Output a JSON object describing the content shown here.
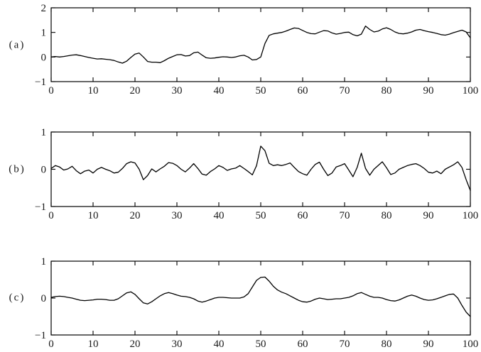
{
  "figure": {
    "background": "#ffffff",
    "axis_color": "#000000",
    "line_color": "#000000",
    "tick_label_color": "#1a1a1a"
  },
  "chart_data": [
    {
      "type": "line",
      "panel_label": "(a)",
      "title": "",
      "xlabel": "",
      "ylabel": "",
      "xlim": [
        0,
        100
      ],
      "ylim": [
        -1,
        2
      ],
      "xticks": [
        0,
        10,
        20,
        30,
        40,
        50,
        60,
        70,
        80,
        90,
        100
      ],
      "yticks": [
        -1,
        0,
        1,
        2
      ],
      "grid": false,
      "x_start": 0,
      "x_end": 100,
      "values": [
        0.0,
        0.02,
        0.0,
        0.02,
        0.05,
        0.08,
        0.09,
        0.06,
        0.02,
        -0.02,
        -0.05,
        -0.08,
        -0.07,
        -0.09,
        -0.11,
        -0.14,
        -0.2,
        -0.25,
        -0.17,
        -0.02,
        0.12,
        0.16,
        0.0,
        -0.18,
        -0.21,
        -0.21,
        -0.23,
        -0.15,
        -0.05,
        0.02,
        0.09,
        0.1,
        0.04,
        0.06,
        0.17,
        0.2,
        0.08,
        -0.03,
        -0.05,
        -0.04,
        -0.01,
        0.01,
        0.0,
        -0.02,
        0.0,
        0.05,
        0.07,
        0.0,
        -0.12,
        -0.1,
        0.0,
        0.55,
        0.88,
        0.94,
        0.97,
        1.0,
        1.05,
        1.12,
        1.18,
        1.16,
        1.08,
        1.0,
        0.95,
        0.94,
        1.01,
        1.07,
        1.06,
        0.98,
        0.93,
        0.96,
        1.0,
        1.01,
        0.91,
        0.86,
        0.93,
        1.26,
        1.12,
        1.02,
        1.05,
        1.14,
        1.19,
        1.12,
        1.02,
        0.96,
        0.94,
        0.97,
        1.02,
        1.09,
        1.12,
        1.07,
        1.03,
        1.0,
        0.96,
        0.91,
        0.89,
        0.93,
        0.99,
        1.04,
        1.09,
        1.02,
        0.78
      ]
    },
    {
      "type": "line",
      "panel_label": "(b)",
      "title": "",
      "xlabel": "",
      "ylabel": "",
      "xlim": [
        0,
        100
      ],
      "ylim": [
        -1,
        1
      ],
      "xticks": [
        0,
        10,
        20,
        30,
        40,
        50,
        60,
        70,
        80,
        90,
        100
      ],
      "yticks": [
        -1,
        0,
        1
      ],
      "grid": false,
      "x_start": 0,
      "x_end": 100,
      "values": [
        0.02,
        0.1,
        0.06,
        -0.02,
        0.01,
        0.08,
        -0.04,
        -0.12,
        -0.05,
        -0.02,
        -0.1,
        0.0,
        0.05,
        0.0,
        -0.04,
        -0.1,
        -0.08,
        0.02,
        0.15,
        0.2,
        0.17,
        0.0,
        -0.28,
        -0.17,
        0.01,
        -0.07,
        0.01,
        0.08,
        0.18,
        0.16,
        0.1,
        0.0,
        -0.07,
        0.03,
        0.15,
        0.02,
        -0.13,
        -0.16,
        -0.06,
        0.01,
        0.1,
        0.05,
        -0.03,
        0.01,
        0.03,
        0.1,
        0.02,
        -0.06,
        -0.15,
        0.1,
        0.62,
        0.5,
        0.16,
        0.1,
        0.12,
        0.1,
        0.13,
        0.17,
        0.05,
        -0.06,
        -0.12,
        -0.16,
        0.0,
        0.13,
        0.19,
        0.0,
        -0.17,
        -0.1,
        0.06,
        0.1,
        0.15,
        -0.02,
        -0.2,
        0.05,
        0.43,
        0.02,
        -0.16,
        0.0,
        0.1,
        0.2,
        0.04,
        -0.14,
        -0.1,
        0.0,
        0.05,
        0.1,
        0.13,
        0.15,
        0.1,
        0.02,
        -0.08,
        -0.1,
        -0.05,
        -0.12,
        0.0,
        0.06,
        0.12,
        0.2,
        0.05,
        -0.28,
        -0.57
      ]
    },
    {
      "type": "line",
      "panel_label": "(c)",
      "title": "",
      "xlabel": "",
      "ylabel": "",
      "xlim": [
        0,
        100
      ],
      "ylim": [
        -1,
        1
      ],
      "xticks": [
        0,
        10,
        20,
        30,
        40,
        50,
        60,
        70,
        80,
        90,
        100
      ],
      "yticks": [
        -1,
        0,
        1
      ],
      "grid": false,
      "x_start": 0,
      "x_end": 100,
      "values": [
        0.02,
        0.04,
        0.05,
        0.04,
        0.02,
        0.0,
        -0.03,
        -0.06,
        -0.07,
        -0.06,
        -0.05,
        -0.03,
        -0.03,
        -0.04,
        -0.06,
        -0.06,
        -0.02,
        0.06,
        0.14,
        0.17,
        0.1,
        -0.02,
        -0.13,
        -0.16,
        -0.1,
        -0.02,
        0.06,
        0.12,
        0.15,
        0.12,
        0.08,
        0.05,
        0.04,
        0.02,
        -0.02,
        -0.08,
        -0.11,
        -0.08,
        -0.04,
        0.0,
        0.02,
        0.02,
        0.01,
        0.0,
        0.0,
        0.0,
        0.03,
        0.12,
        0.3,
        0.48,
        0.56,
        0.57,
        0.46,
        0.32,
        0.22,
        0.16,
        0.12,
        0.06,
        0.0,
        -0.06,
        -0.1,
        -0.11,
        -0.08,
        -0.03,
        0.0,
        -0.02,
        -0.04,
        -0.03,
        -0.02,
        -0.02,
        0.0,
        0.02,
        0.06,
        0.12,
        0.15,
        0.1,
        0.05,
        0.02,
        0.02,
        0.0,
        -0.04,
        -0.07,
        -0.08,
        -0.05,
        0.0,
        0.05,
        0.08,
        0.05,
        0.0,
        -0.04,
        -0.06,
        -0.05,
        -0.02,
        0.02,
        0.06,
        0.1,
        0.11,
        0.0,
        -0.2,
        -0.38,
        -0.5
      ]
    }
  ]
}
